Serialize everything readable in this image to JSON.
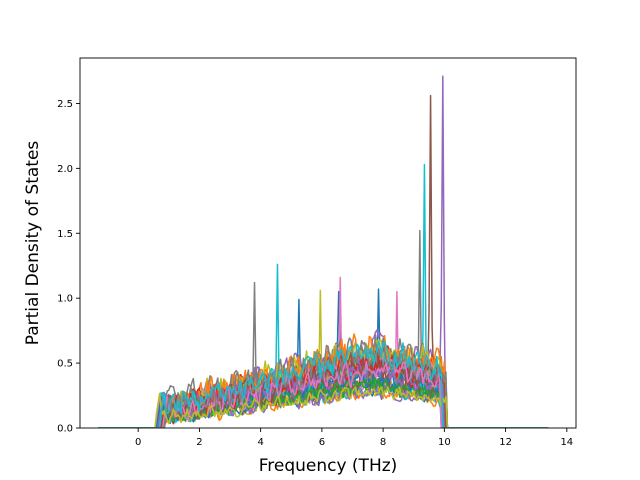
{
  "chart_data": {
    "type": "line",
    "title": "",
    "xlabel": "Frequency (THz)",
    "ylabel": "Partial Density of States",
    "xlim": [
      -1.9,
      14.3
    ],
    "ylim": [
      0,
      2.85
    ],
    "x_ticks": [
      0,
      2,
      4,
      6,
      8,
      10,
      12,
      14
    ],
    "x_tick_labels": [
      "0",
      "2",
      "4",
      "6",
      "8",
      "10",
      "12",
      "14"
    ],
    "y_ticks": [
      0.0,
      0.5,
      1.0,
      1.5,
      2.0,
      2.5
    ],
    "y_tick_labels": [
      "0.0",
      "0.5",
      "1.0",
      "1.5",
      "2.0",
      "2.5"
    ],
    "grid": false,
    "legend": "none",
    "x_range": [
      -1.3,
      13.4
    ],
    "band_range": [
      0.55,
      10.1
    ],
    "series_count": 40,
    "colors": [
      "#1f77b4",
      "#ff7f0e",
      "#2ca02c",
      "#d62728",
      "#9467bd",
      "#8c564b",
      "#e377c2",
      "#7f7f7f",
      "#bcbd22",
      "#17becf"
    ],
    "peaks": [
      {
        "x": 9.95,
        "y": 2.71,
        "series": 4
      },
      {
        "x": 9.55,
        "y": 2.56,
        "series": 5
      },
      {
        "x": 9.35,
        "y": 2.03,
        "series": 9
      },
      {
        "x": 9.2,
        "y": 1.52,
        "series": 7
      },
      {
        "x": 4.55,
        "y": 1.26,
        "series": 9
      },
      {
        "x": 6.6,
        "y": 1.16,
        "series": 6
      },
      {
        "x": 3.8,
        "y": 1.12,
        "series": 7
      },
      {
        "x": 6.55,
        "y": 1.05,
        "series": 0
      },
      {
        "x": 5.95,
        "y": 1.06,
        "series": 8
      },
      {
        "x": 7.85,
        "y": 1.07,
        "series": 0
      },
      {
        "x": 8.45,
        "y": 1.05,
        "series": 6
      },
      {
        "x": 5.25,
        "y": 0.99,
        "series": 0
      }
    ]
  }
}
